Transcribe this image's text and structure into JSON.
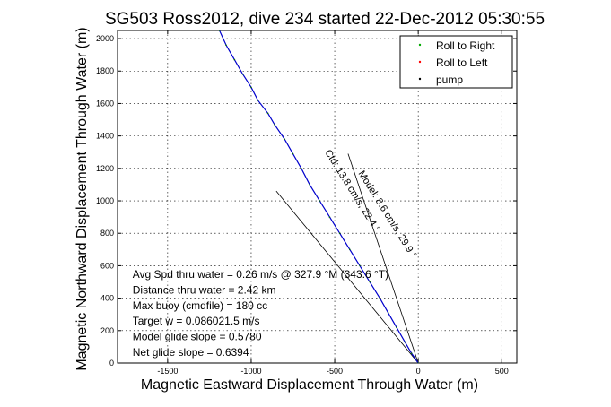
{
  "chart_data": {
    "type": "line",
    "title": "SG503 Ross2012, dive 234 started 22-Dec-2012 05:30:55",
    "xlabel": "Magnetic Eastward Displacement Through Water (m)",
    "ylabel": "Magnetic Northward Displacement Through Water (m)",
    "xlim": [
      -1800,
      590
    ],
    "ylim": [
      0,
      2050
    ],
    "xticks": [
      -1500,
      -1000,
      -500,
      0,
      500
    ],
    "yticks": [
      0,
      200,
      400,
      600,
      800,
      1000,
      1200,
      1400,
      1600,
      1800,
      2000
    ],
    "grid": true,
    "legend_position": "top-right",
    "legend": [
      {
        "label": "Roll to Right",
        "color": "#00aa00"
      },
      {
        "label": "Roll to Left",
        "color": "#ff0000"
      },
      {
        "label": "pump",
        "color": "#000000"
      }
    ],
    "series": [
      {
        "color": "#0000cc",
        "x": [
          0,
          -40,
          -80,
          -130,
          -180,
          -230,
          -290,
          -350,
          -410,
          -470,
          -530,
          -590,
          -650,
          -700,
          -750,
          -800,
          -860,
          -900,
          -960,
          -1000,
          -1050,
          -1100,
          -1150,
          -1190
        ],
        "y": [
          0,
          60,
          130,
          220,
          310,
          400,
          500,
          600,
          700,
          800,
          900,
          1000,
          1100,
          1200,
          1290,
          1380,
          1470,
          1540,
          1620,
          1700,
          1780,
          1870,
          1960,
          2050
        ]
      }
    ],
    "lines": [
      {
        "color": "#000000",
        "x": [
          0,
          -850
        ],
        "y": [
          0,
          1060
        ]
      },
      {
        "color": "#000000",
        "x": [
          0,
          -420
        ],
        "y": [
          0,
          1290
        ]
      }
    ],
    "annotations": {
      "stats": [
        "Avg Spd thru water =  0.26 m/s @ 327.9 °M (343.6 °T)",
        "Distance thru water =  2.42 km",
        "Max buoy (cmdfile) = 180 cc",
        "Target w = 0.086021.5 m/s",
        "Model glide slope = 0.5780",
        "Net glide slope = 0.6394"
      ],
      "rotated_labels": [
        {
          "text": "Model: 8.6 cm/s, 29.9 °",
          "x": -360,
          "y": 1170
        },
        {
          "text": "Ctd: 13.8 cm/s, 22.4 °",
          "x": -560,
          "y": 1300
        }
      ]
    }
  }
}
